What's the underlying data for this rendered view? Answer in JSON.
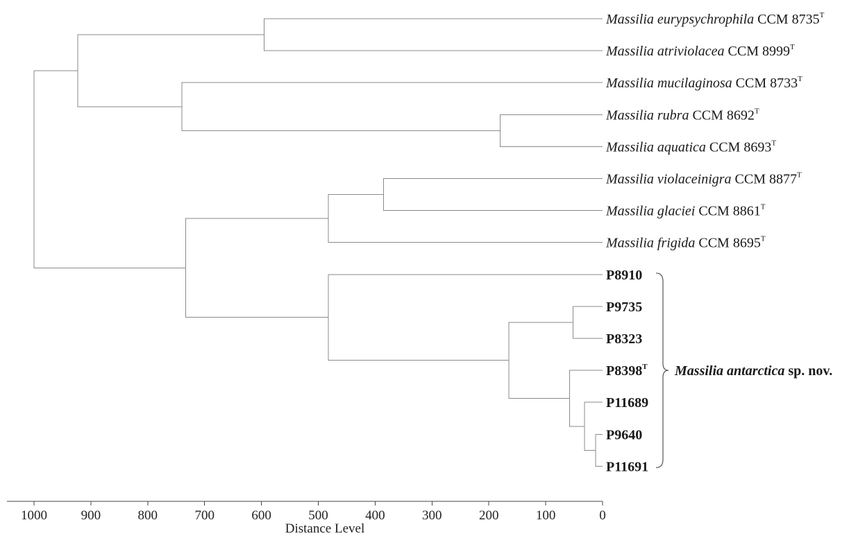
{
  "leaves": [
    {
      "italic": "Massilia eurypsychrophila",
      "strain": " CCM 8735",
      "sup": "T",
      "bold": false
    },
    {
      "italic": "Massilia atriviolacea",
      "strain": " CCM 8999",
      "sup": "T",
      "bold": false
    },
    {
      "italic": "Massilia mucilaginosa",
      "strain": " CCM 8733",
      "sup": "T",
      "bold": false
    },
    {
      "italic": "Massilia rubra",
      "strain": " CCM 8692",
      "sup": "T",
      "bold": false
    },
    {
      "italic": "Massilia aquatica",
      "strain": " CCM 8693",
      "sup": "T",
      "bold": false
    },
    {
      "italic": "Massilia violaceinigra",
      "strain": " CCM 8877",
      "sup": "T",
      "bold": false
    },
    {
      "italic": "Massilia glaciei",
      "strain": " CCM 8861",
      "sup": "T",
      "bold": false
    },
    {
      "italic": "Massilia frigida",
      "strain": " CCM 8695",
      "sup": "T",
      "bold": false
    },
    {
      "italic": "",
      "strain": "P8910",
      "sup": "",
      "bold": true
    },
    {
      "italic": "",
      "strain": "P9735",
      "sup": "",
      "bold": true
    },
    {
      "italic": "",
      "strain": "P8323",
      "sup": "",
      "bold": true
    },
    {
      "italic": "",
      "strain": "P8398",
      "sup": "T",
      "bold": true
    },
    {
      "italic": "",
      "strain": "P11689",
      "sup": "",
      "bold": true
    },
    {
      "italic": "",
      "strain": "P9640",
      "sup": "",
      "bold": true
    },
    {
      "italic": "",
      "strain": "P11691",
      "sup": "",
      "bold": true
    }
  ],
  "merges": [
    {
      "children": [
        0,
        1
      ],
      "height": 595
    },
    {
      "children": [
        3,
        4
      ],
      "height": 180
    },
    {
      "children": [
        2,
        "n1"
      ],
      "height": 740
    },
    {
      "children": [
        "n0",
        "n2"
      ],
      "height": 923
    },
    {
      "children": [
        5,
        6
      ],
      "height": 385
    },
    {
      "children": [
        "n4",
        7
      ],
      "height": 482
    },
    {
      "children": [
        9,
        10
      ],
      "height": 52
    },
    {
      "children": [
        13,
        14
      ],
      "height": 12
    },
    {
      "children": [
        12,
        "n7"
      ],
      "height": 32
    },
    {
      "children": [
        11,
        "n8"
      ],
      "height": 58
    },
    {
      "children": [
        "n6",
        "n9"
      ],
      "height": 165
    },
    {
      "children": [
        8,
        "n10"
      ],
      "height": 482
    },
    {
      "children": [
        "n5",
        "n11"
      ],
      "height": 733
    },
    {
      "children": [
        "n3",
        "n12"
      ],
      "height": 1000
    }
  ],
  "group": {
    "italic": "Massilia antarctica",
    "rest": " sp. nov.",
    "first_leaf": 8,
    "last_leaf": 14
  },
  "axis": {
    "title": "Distance Level",
    "domain": [
      1000,
      0
    ],
    "ticks": [
      1000,
      900,
      800,
      700,
      600,
      500,
      400,
      300,
      200,
      100,
      0
    ]
  }
}
